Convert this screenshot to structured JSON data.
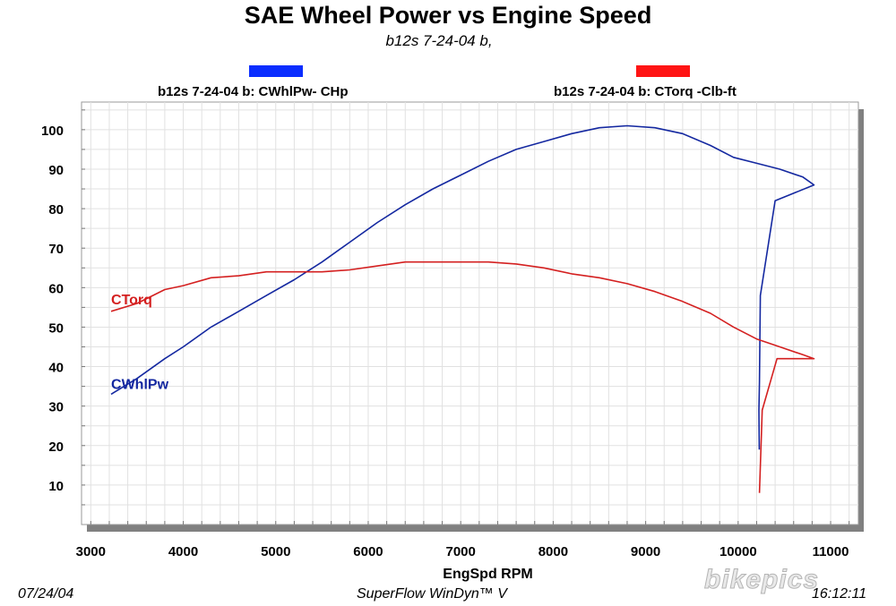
{
  "chart_data": {
    "type": "line",
    "title": "SAE Wheel Power vs Engine Speed",
    "subtitle": "b12s 7-24-04 b,",
    "xlabel": "EngSpd  RPM",
    "ylabel": "",
    "xlim": [
      2900,
      11300
    ],
    "ylim": [
      0,
      107
    ],
    "x_ticks": [
      3000,
      4000,
      5000,
      6000,
      7000,
      8000,
      9000,
      10000,
      11000
    ],
    "y_ticks": [
      10,
      20,
      30,
      40,
      50,
      60,
      70,
      80,
      90,
      100
    ],
    "grid": true,
    "legend_position": "top",
    "series": [
      {
        "name": "b12s 7-24-04 b: CWhlPw- CHp",
        "label": "CWhlPw",
        "color": "#1428a0",
        "legend_color": "#0a2dff",
        "points": [
          [
            3220,
            33
          ],
          [
            3500,
            37
          ],
          [
            3800,
            42
          ],
          [
            4000,
            45
          ],
          [
            4300,
            50
          ],
          [
            4600,
            54
          ],
          [
            4900,
            58
          ],
          [
            5200,
            62
          ],
          [
            5500,
            66.5
          ],
          [
            5800,
            71.5
          ],
          [
            6100,
            76.5
          ],
          [
            6400,
            81
          ],
          [
            6700,
            85
          ],
          [
            7000,
            88.5
          ],
          [
            7300,
            92
          ],
          [
            7600,
            95
          ],
          [
            7900,
            97
          ],
          [
            8200,
            99
          ],
          [
            8500,
            100.5
          ],
          [
            8800,
            101
          ],
          [
            9100,
            100.5
          ],
          [
            9400,
            99
          ],
          [
            9700,
            96
          ],
          [
            9950,
            93
          ],
          [
            10200,
            91.5
          ],
          [
            10450,
            90
          ],
          [
            10700,
            88
          ],
          [
            10820,
            86
          ],
          [
            10400,
            82
          ],
          [
            10240,
            58
          ],
          [
            10230,
            36
          ],
          [
            10225,
            29
          ],
          [
            10228,
            19
          ]
        ]
      },
      {
        "name": "b12s 7-24-04 b: CTorq -Clb-ft",
        "label": "CTorq",
        "color": "#d42020",
        "legend_color": "#ff1414",
        "points": [
          [
            3220,
            54
          ],
          [
            3500,
            56
          ],
          [
            3800,
            59.5
          ],
          [
            4000,
            60.5
          ],
          [
            4300,
            62.5
          ],
          [
            4600,
            63
          ],
          [
            4900,
            64
          ],
          [
            5200,
            64
          ],
          [
            5500,
            64
          ],
          [
            5800,
            64.5
          ],
          [
            6100,
            65.5
          ],
          [
            6400,
            66.5
          ],
          [
            6700,
            66.5
          ],
          [
            7000,
            66.5
          ],
          [
            7300,
            66.5
          ],
          [
            7600,
            66
          ],
          [
            7900,
            65
          ],
          [
            8200,
            63.5
          ],
          [
            8500,
            62.5
          ],
          [
            8800,
            61
          ],
          [
            9100,
            59
          ],
          [
            9400,
            56.5
          ],
          [
            9700,
            53.5
          ],
          [
            9950,
            50
          ],
          [
            10200,
            47
          ],
          [
            10450,
            45
          ],
          [
            10700,
            43
          ],
          [
            10820,
            42
          ],
          [
            10420,
            42
          ],
          [
            10260,
            29
          ],
          [
            10230,
            8
          ]
        ]
      }
    ]
  },
  "footer": {
    "date": "07/24/04",
    "software": "SuperFlow WinDyn™ V",
    "time": "16:12:11",
    "watermark": "bikepics"
  }
}
